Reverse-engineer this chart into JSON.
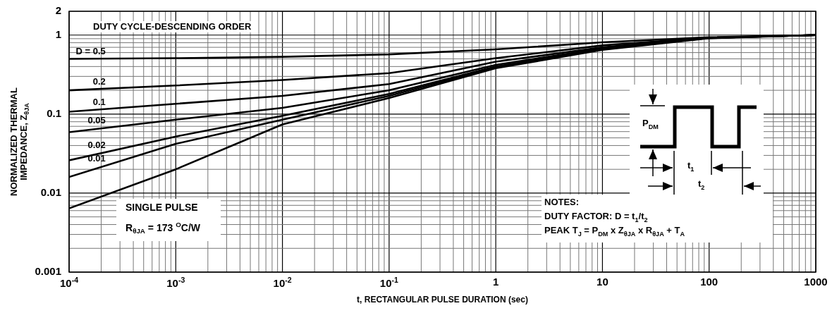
{
  "chart_data": {
    "type": "line",
    "xlabel": "t, RECTANGULAR PULSE DURATION (sec)",
    "ylabel": "NORMALIZED THERMAL IMPEDANCE, Z$_{θJA}$",
    "log": "xy",
    "grid": true,
    "legend": false,
    "marker": "none",
    "line_style": "solid",
    "x": [
      0.0001,
      0.001,
      0.01,
      0.1,
      1,
      10,
      100,
      1000
    ],
    "xlim": [
      0.0001,
      1000
    ],
    "ylim": [
      0.001,
      2
    ],
    "xticks": [
      {
        "value": 0.0001,
        "label": "10$^{-4}$"
      },
      {
        "value": 0.001,
        "label": "10$^{-3}$"
      },
      {
        "value": 0.01,
        "label": "10$^{-2}$"
      },
      {
        "value": 0.1,
        "label": "10$^{-1}$"
      },
      1,
      10,
      100,
      1000
    ],
    "yticks": [
      0.001,
      0.01,
      0.1,
      1,
      2
    ],
    "series": [
      {
        "name": "D = 0.5",
        "color": "#000000",
        "values": [
          0.5,
          0.51,
          0.53,
          0.57,
          0.66,
          0.81,
          0.94,
          1.0
        ]
      },
      {
        "name": "0.2",
        "color": "#000000",
        "values": [
          0.2,
          0.23,
          0.27,
          0.33,
          0.51,
          0.74,
          0.93,
          1.0
        ]
      },
      {
        "name": "0.1",
        "color": "#000000",
        "values": [
          0.107,
          0.135,
          0.17,
          0.24,
          0.46,
          0.7,
          0.92,
          1.0
        ]
      },
      {
        "name": "0.05",
        "color": "#000000",
        "values": [
          0.059,
          0.085,
          0.12,
          0.2,
          0.42,
          0.68,
          0.92,
          1.0
        ]
      },
      {
        "name": "0.02",
        "color": "#000000",
        "values": [
          0.026,
          0.052,
          0.095,
          0.18,
          0.4,
          0.67,
          0.92,
          1.0
        ]
      },
      {
        "name": "0.01",
        "color": "#000000",
        "values": [
          0.016,
          0.042,
          0.085,
          0.17,
          0.39,
          0.66,
          0.92,
          1.0
        ]
      },
      {
        "name": "SINGLE PULSE",
        "color": "#000000",
        "values": [
          0.0064,
          0.02,
          0.074,
          0.16,
          0.38,
          0.65,
          0.91,
          1.0
        ]
      }
    ],
    "annotations": [
      "DUTY CYCLE-DESCENDING ORDER",
      "R$_{θJA}$ = 173 $^{O}$C/W",
      "NOTES:",
      "DUTY FACTOR: D = t$_{1}$/t$_{2}$",
      "PEAK T$_{J}$ = P$_{DM}$ x Z$_{θJA}$ x R$_{θJA}$ + T$_{A}$",
      "P$_{DM}$",
      "t$_{1}$",
      "t$_{2}$"
    ]
  }
}
